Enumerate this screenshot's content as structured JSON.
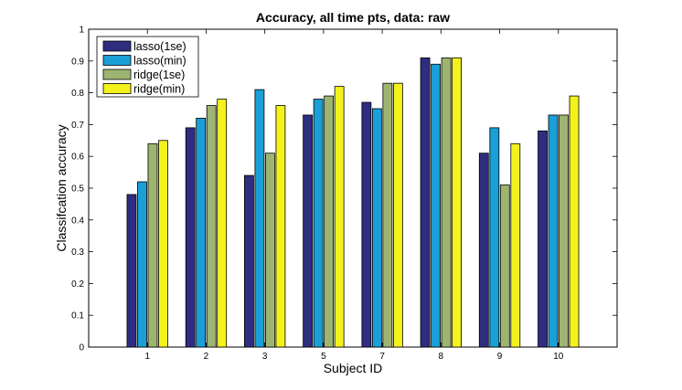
{
  "chart_data": {
    "type": "bar",
    "title": "Accuracy, all time pts, data: raw",
    "xlabel": "Subject ID",
    "ylabel": "Classifcation accuracy",
    "categories": [
      "1",
      "2",
      "3",
      "5",
      "7",
      "8",
      "9",
      "10"
    ],
    "ylim": [
      0,
      1
    ],
    "yticks": [
      "0",
      "0.1",
      "0.2",
      "0.3",
      "0.4",
      "0.5",
      "0.6",
      "0.7",
      "0.8",
      "0.9",
      "1"
    ],
    "grid": false,
    "legend_position": "top-left",
    "series": [
      {
        "name": "lasso(1se)",
        "color": "#2e2d80",
        "values": [
          0.48,
          0.69,
          0.54,
          0.73,
          0.77,
          0.91,
          0.61,
          0.68
        ]
      },
      {
        "name": "lasso(min)",
        "color": "#1a9fd6",
        "values": [
          0.52,
          0.72,
          0.81,
          0.78,
          0.75,
          0.89,
          0.69,
          0.73
        ]
      },
      {
        "name": "ridge(1se)",
        "color": "#9eb571",
        "values": [
          0.64,
          0.76,
          0.61,
          0.79,
          0.83,
          0.91,
          0.51,
          0.73
        ]
      },
      {
        "name": "ridge(min)",
        "color": "#f4f21c",
        "values": [
          0.65,
          0.78,
          0.76,
          0.82,
          0.83,
          0.91,
          0.64,
          0.79
        ]
      }
    ]
  }
}
